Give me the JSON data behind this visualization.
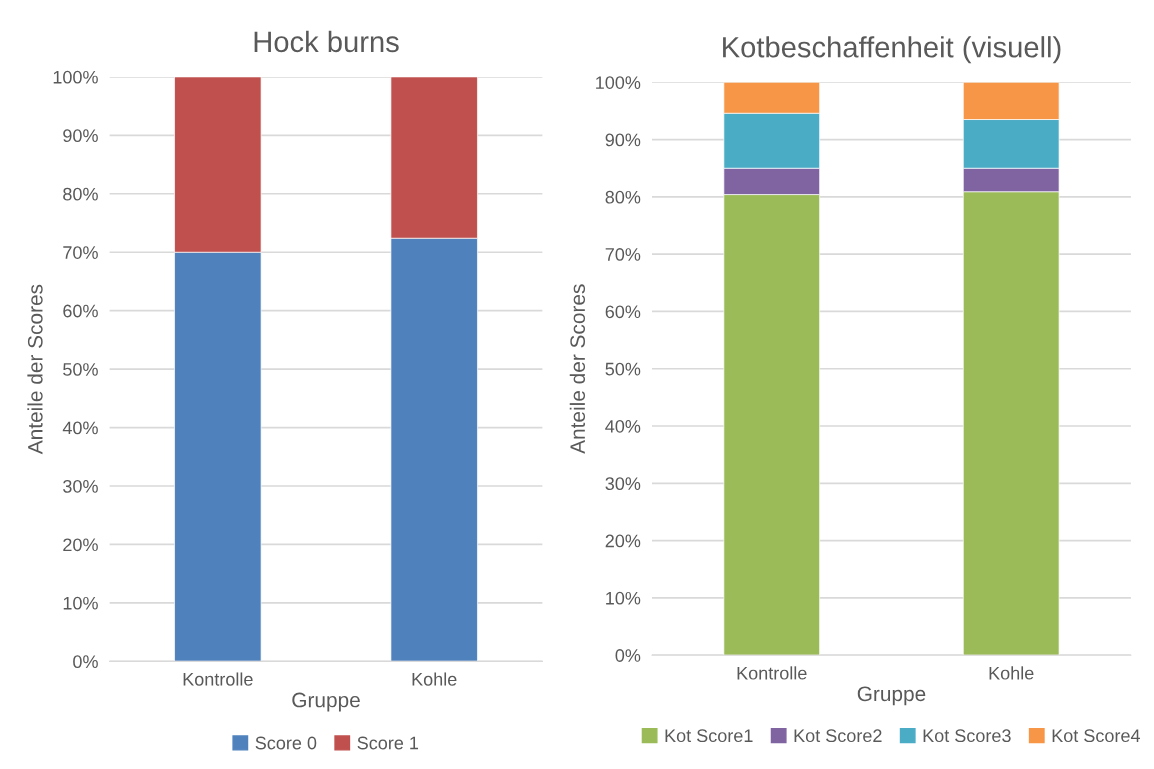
{
  "chart_data": [
    {
      "type": "bar",
      "title": "Hock burns",
      "xlabel": "Gruppe",
      "ylabel": "Anteile der Scores",
      "categories": [
        "Kontrolle",
        "Kohle"
      ],
      "stacked": true,
      "series": [
        {
          "name": "Score 0",
          "color": "#4f81bd",
          "values": [
            70,
            72.4
          ]
        },
        {
          "name": "Score 1",
          "color": "#c0504d",
          "values": [
            30,
            27.6
          ]
        }
      ],
      "ylim": [
        0,
        100
      ],
      "yticks": [
        {
          "value": 0,
          "label": "0%"
        },
        {
          "value": 10,
          "label": "10%"
        },
        {
          "value": 20,
          "label": "20%"
        },
        {
          "value": 30,
          "label": "30%"
        },
        {
          "value": 40,
          "label": "40%"
        },
        {
          "value": 50,
          "label": "50%"
        },
        {
          "value": 60,
          "label": "60%"
        },
        {
          "value": 70,
          "label": "70%"
        },
        {
          "value": 80,
          "label": "80%"
        },
        {
          "value": 90,
          "label": "90%"
        },
        {
          "value": 100,
          "label": "100%"
        }
      ],
      "grid": "y",
      "legend": "bottom"
    },
    {
      "type": "bar",
      "title": "Kotbeschaffenheit (visuell)",
      "xlabel": "Gruppe",
      "ylabel": "Anteile der Scores",
      "categories": [
        "Kontrolle",
        "Kohle"
      ],
      "stacked": true,
      "series": [
        {
          "name": "Kot Score1",
          "color": "#9bbb59",
          "values": [
            80.4,
            80.9
          ]
        },
        {
          "name": "Kot Score2",
          "color": "#8064a2",
          "values": [
            4.6,
            4.1
          ]
        },
        {
          "name": "Kot Score3",
          "color": "#4bacc6",
          "values": [
            9.6,
            8.5
          ]
        },
        {
          "name": "Kot Score4",
          "color": "#f79646",
          "values": [
            5.4,
            6.5
          ]
        }
      ],
      "ylim": [
        0,
        100
      ],
      "yticks": [
        {
          "value": 0,
          "label": "0%"
        },
        {
          "value": 10,
          "label": "10%"
        },
        {
          "value": 20,
          "label": "20%"
        },
        {
          "value": 30,
          "label": "30%"
        },
        {
          "value": 40,
          "label": "40%"
        },
        {
          "value": 50,
          "label": "50%"
        },
        {
          "value": 60,
          "label": "60%"
        },
        {
          "value": 70,
          "label": "70%"
        },
        {
          "value": 80,
          "label": "80%"
        },
        {
          "value": 90,
          "label": "90%"
        },
        {
          "value": 100,
          "label": "100%"
        }
      ],
      "grid": "y",
      "legend": "bottom"
    }
  ]
}
